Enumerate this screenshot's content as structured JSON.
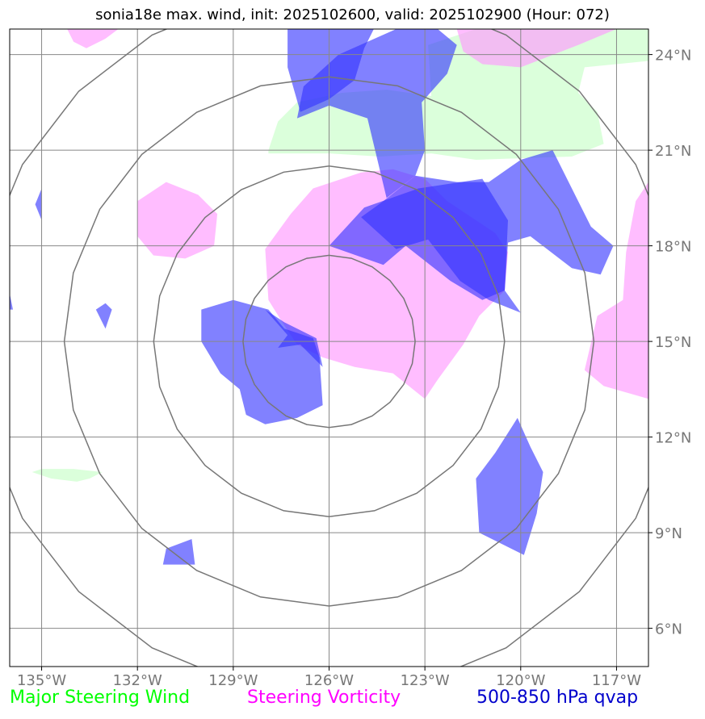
{
  "title": "sonia18e max. wind, init: 2025102600, valid: 2025102900 (Hour: 072)",
  "map": {
    "lon_range": [
      -136,
      -116
    ],
    "lat_range": [
      4.8,
      24.8
    ],
    "lon_ticks": [
      {
        "value": -135,
        "label": "135°W"
      },
      {
        "value": -132,
        "label": "132°W"
      },
      {
        "value": -129,
        "label": "129°W"
      },
      {
        "value": -126,
        "label": "126°W"
      },
      {
        "value": -123,
        "label": "123°W"
      },
      {
        "value": -120,
        "label": "120°W"
      },
      {
        "value": -117,
        "label": "117°W"
      }
    ],
    "lat_ticks": [
      {
        "value": 24,
        "label": "24°N"
      },
      {
        "value": 21,
        "label": "21°N"
      },
      {
        "value": 18,
        "label": "18°N"
      },
      {
        "value": 15,
        "label": "15°N"
      },
      {
        "value": 12,
        "label": "12°N"
      },
      {
        "value": 9,
        "label": "9°N"
      },
      {
        "value": 6,
        "label": "6°N"
      }
    ],
    "grid": true,
    "range_rings": {
      "center": {
        "lon": -126,
        "lat": 15
      },
      "radii_deg": [
        2.7,
        5.5,
        8.3,
        11.1
      ]
    },
    "layers": [
      {
        "name": "Major Steering Wind",
        "color": "#ccffcc",
        "opacity": 0.7,
        "polygons": [
          [
            [
              -127.9,
              21.0
            ],
            [
              -127.6,
              21.9
            ],
            [
              -127.0,
              22.5
            ],
            [
              -125.6,
              22.8
            ],
            [
              -124.2,
              22.9
            ],
            [
              -122.8,
              22.7
            ],
            [
              -122.9,
              24.3
            ],
            [
              -121.4,
              24.8
            ],
            [
              -116.0,
              24.8
            ],
            [
              -116.0,
              23.8
            ],
            [
              -118.0,
              23.6
            ],
            [
              -118.2,
              22.8
            ],
            [
              -117.6,
              22.2
            ],
            [
              -117.4,
              21.2
            ],
            [
              -118.4,
              20.8
            ],
            [
              -121.4,
              20.7
            ],
            [
              -122.8,
              20.9
            ],
            [
              -124.4,
              20.8
            ],
            [
              -126.0,
              20.9
            ],
            [
              -127.9,
              20.9
            ]
          ],
          [
            [
              -135.3,
              10.9
            ],
            [
              -134.7,
              10.7
            ],
            [
              -133.9,
              10.6
            ],
            [
              -133.5,
              10.7
            ],
            [
              -133.1,
              10.9
            ],
            [
              -134.0,
              11.0
            ],
            [
              -135.0,
              11.0
            ]
          ]
        ]
      },
      {
        "name": "Steering Vorticity",
        "color": "#ff99ff",
        "opacity": 0.65,
        "polygons": [
          [
            [
              -134.2,
              24.8
            ],
            [
              -132.6,
              24.8
            ],
            [
              -133.0,
              24.5
            ],
            [
              -133.6,
              24.2
            ],
            [
              -134.0,
              24.4
            ]
          ],
          [
            [
              -122.0,
              24.8
            ],
            [
              -117.0,
              24.8
            ],
            [
              -118.2,
              24.3
            ],
            [
              -120.0,
              23.6
            ],
            [
              -121.2,
              23.7
            ],
            [
              -121.8,
              24.1
            ]
          ],
          [
            [
              -132.0,
              19.4
            ],
            [
              -131.1,
              20.0
            ],
            [
              -130.1,
              19.6
            ],
            [
              -129.5,
              19.0
            ],
            [
              -129.6,
              18.0
            ],
            [
              -130.5,
              17.6
            ],
            [
              -131.5,
              17.7
            ],
            [
              -132.0,
              18.3
            ]
          ],
          [
            [
              -128.0,
              17.9
            ],
            [
              -127.2,
              19.0
            ],
            [
              -126.5,
              19.8
            ],
            [
              -125.0,
              20.3
            ],
            [
              -124.0,
              20.4
            ],
            [
              -123.0,
              20.1
            ],
            [
              -122.3,
              19.4
            ],
            [
              -120.8,
              18.4
            ],
            [
              -120.4,
              17.8
            ],
            [
              -120.5,
              16.6
            ],
            [
              -121.3,
              15.8
            ],
            [
              -121.8,
              14.9
            ],
            [
              -122.6,
              13.8
            ],
            [
              -123.0,
              13.2
            ],
            [
              -124.0,
              14.0
            ],
            [
              -125.2,
              14.2
            ],
            [
              -126.2,
              14.5
            ],
            [
              -127.0,
              14.9
            ],
            [
              -127.4,
              15.5
            ],
            [
              -127.9,
              16.3
            ]
          ],
          [
            [
              -116.0,
              20.0
            ],
            [
              -116.4,
              19.4
            ],
            [
              -116.7,
              17.8
            ],
            [
              -116.8,
              16.3
            ],
            [
              -117.6,
              15.8
            ],
            [
              -118.0,
              14.1
            ],
            [
              -117.4,
              13.6
            ],
            [
              -116.0,
              13.2
            ]
          ]
        ]
      },
      {
        "name": "500-850 hPa qvap",
        "color": "#3333ff",
        "opacity": 0.62,
        "polygons": [
          [
            [
              -127.3,
              24.8
            ],
            [
              -124.6,
              24.8
            ],
            [
              -124.9,
              24.2
            ],
            [
              -125.2,
              23.2
            ],
            [
              -126.0,
              22.6
            ],
            [
              -126.9,
              22.2
            ],
            [
              -127.3,
              23.6
            ]
          ],
          [
            [
              -125.7,
              24.0
            ],
            [
              -123.9,
              24.8
            ],
            [
              -122.6,
              24.8
            ],
            [
              -122.0,
              24.3
            ],
            [
              -122.3,
              23.4
            ],
            [
              -123.1,
              22.5
            ],
            [
              -123.0,
              21.0
            ],
            [
              -123.3,
              20.2
            ],
            [
              -124.2,
              19.5
            ],
            [
              -124.8,
              22.0
            ],
            [
              -126.0,
              22.4
            ],
            [
              -127.0,
              22.0
            ],
            [
              -126.8,
              23.0
            ]
          ],
          [
            [
              -123.3,
              20.2
            ],
            [
              -122.0,
              20.0
            ],
            [
              -121.0,
              20.0
            ],
            [
              -120.0,
              20.7
            ],
            [
              -119.0,
              21.0
            ],
            [
              -117.8,
              18.6
            ],
            [
              -117.1,
              18.0
            ],
            [
              -117.5,
              17.1
            ],
            [
              -118.4,
              17.3
            ],
            [
              -119.7,
              18.3
            ],
            [
              -120.4,
              18.1
            ],
            [
              -120.5,
              16.6
            ],
            [
              -120.0,
              15.9
            ],
            [
              -121.0,
              16.3
            ],
            [
              -121.9,
              16.9
            ],
            [
              -122.9,
              18.2
            ],
            [
              -123.9,
              17.9
            ],
            [
              -125.0,
              18.9
            ],
            [
              -124.3,
              19.4
            ]
          ],
          [
            [
              -126.0,
              18.0
            ],
            [
              -124.9,
              19.2
            ],
            [
              -123.2,
              19.8
            ],
            [
              -121.2,
              20.1
            ],
            [
              -120.4,
              18.8
            ],
            [
              -120.5,
              16.6
            ],
            [
              -121.2,
              16.3
            ],
            [
              -122.2,
              16.9
            ],
            [
              -123.6,
              18.0
            ],
            [
              -124.3,
              17.4
            ]
          ],
          [
            [
              -130.0,
              16.0
            ],
            [
              -129.0,
              16.3
            ],
            [
              -127.9,
              16.0
            ],
            [
              -127.4,
              15.4
            ],
            [
              -126.5,
              15.1
            ],
            [
              -126.3,
              14.5
            ],
            [
              -126.2,
              13.0
            ],
            [
              -127.0,
              12.6
            ],
            [
              -128.0,
              12.4
            ],
            [
              -128.6,
              12.7
            ],
            [
              -128.8,
              13.5
            ],
            [
              -129.4,
              14.0
            ],
            [
              -130.0,
              15.0
            ]
          ],
          [
            [
              -128.0,
              16.0
            ],
            [
              -127.4,
              15.6
            ],
            [
              -126.4,
              15.1
            ],
            [
              -126.2,
              14.2
            ],
            [
              -126.9,
              14.9
            ],
            [
              -127.6,
              14.8
            ],
            [
              -127.3,
              15.2
            ]
          ],
          [
            [
              -120.1,
              12.6
            ],
            [
              -120.8,
              11.5
            ],
            [
              -121.4,
              10.7
            ],
            [
              -121.3,
              9.0
            ],
            [
              -119.9,
              8.3
            ],
            [
              -119.5,
              9.6
            ],
            [
              -119.3,
              10.9
            ],
            [
              -119.7,
              11.7
            ]
          ],
          [
            [
              -131.1,
              8.5
            ],
            [
              -130.3,
              8.8
            ],
            [
              -130.2,
              8.0
            ],
            [
              -131.2,
              8.0
            ]
          ],
          [
            [
              -135.0,
              19.8
            ],
            [
              -135.0,
              18.8
            ],
            [
              -135.2,
              19.3
            ]
          ],
          [
            [
              -133.3,
              16.0
            ],
            [
              -133.0,
              16.2
            ],
            [
              -132.8,
              16.0
            ],
            [
              -133.0,
              15.4
            ]
          ],
          [
            [
              -136.0,
              16.5
            ],
            [
              -135.9,
              16.0
            ],
            [
              -136.0,
              16.0
            ]
          ]
        ]
      }
    ]
  },
  "legend": [
    {
      "label": "Major Steering Wind",
      "color": "#00ff00"
    },
    {
      "label": "Steering Vorticity",
      "color": "#ff00ff"
    },
    {
      "label": "500-850 hPa qvap",
      "color": "#0000cc"
    }
  ]
}
